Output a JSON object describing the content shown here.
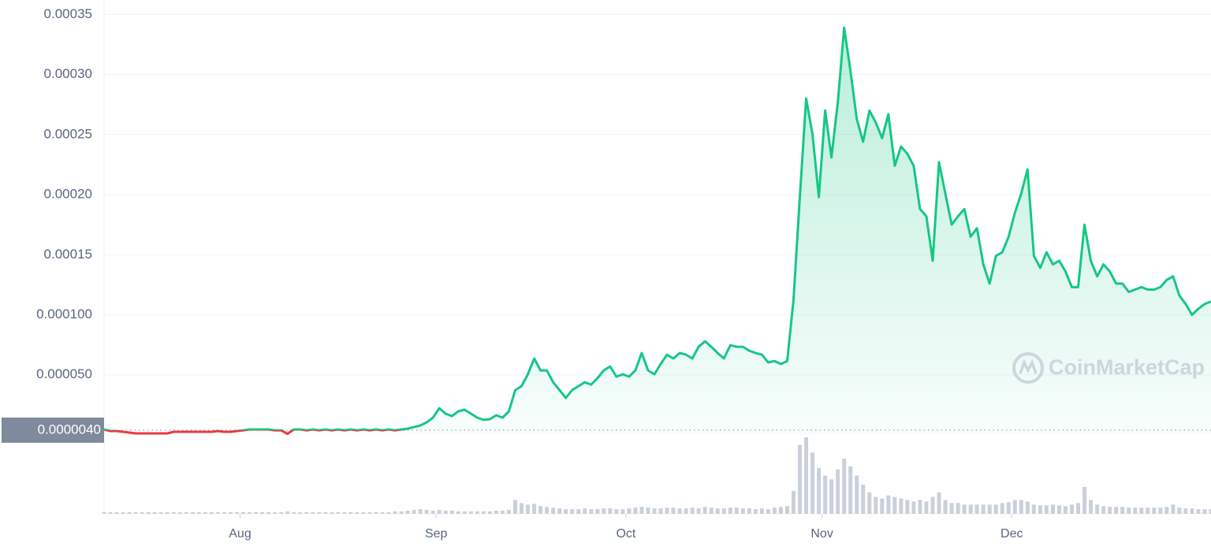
{
  "chart_data": {
    "type": "line",
    "x": [
      0,
      1,
      2,
      3,
      4,
      5,
      6,
      7,
      8,
      9,
      10,
      11,
      12,
      13,
      14,
      15,
      16,
      17,
      18,
      19,
      20,
      21,
      22,
      23,
      24,
      25,
      26,
      27,
      28,
      29,
      30,
      31,
      32,
      33,
      34,
      35,
      36,
      37,
      38,
      39,
      40,
      41,
      42,
      43,
      44,
      45,
      46,
      47,
      48,
      49,
      50,
      51,
      52,
      53,
      54,
      55,
      56,
      57,
      58,
      59,
      60,
      61,
      62,
      63,
      64,
      65,
      66,
      67,
      68,
      69,
      70,
      71,
      72,
      73,
      74,
      75,
      76,
      77,
      78,
      79,
      80,
      81,
      82,
      83,
      84,
      85,
      86,
      87,
      88,
      89,
      90,
      91,
      92,
      93,
      94,
      95,
      96,
      97,
      98,
      99,
      100,
      101,
      102,
      103,
      104,
      105,
      106,
      107,
      108,
      109,
      110,
      111,
      112,
      113,
      114,
      115,
      116,
      117,
      118,
      119,
      120,
      121,
      122,
      123,
      124,
      125,
      126,
      127,
      128,
      129,
      130,
      131,
      132,
      133,
      134,
      135,
      136,
      137,
      138,
      139,
      140,
      141,
      142,
      143,
      144,
      145,
      146,
      147,
      148,
      149,
      150,
      151,
      152,
      153,
      154,
      155,
      156,
      157,
      158,
      159,
      160,
      161,
      162,
      163,
      164,
      165,
      166,
      167,
      168,
      169,
      170,
      171,
      172,
      173,
      174,
      175
    ],
    "xlim": [
      0,
      175
    ],
    "xticks": [
      {
        "value": 21.5,
        "label": "Aug"
      },
      {
        "value": 52.5,
        "label": "Sep"
      },
      {
        "value": 82.5,
        "label": "Oct"
      },
      {
        "value": 113.5,
        "label": "Nov"
      },
      {
        "value": 143.5,
        "label": "Dec"
      }
    ],
    "ylim": [
      0,
      0.000362
    ],
    "yticks": [
      {
        "value": 5e-05,
        "label": "0.000050"
      },
      {
        "value": 0.0001,
        "label": "0.000100"
      },
      {
        "value": 0.00015,
        "label": "0.00015"
      },
      {
        "value": 0.0002,
        "label": "0.00020"
      },
      {
        "value": 0.00025,
        "label": "0.00025"
      },
      {
        "value": 0.0003,
        "label": "0.00030"
      },
      0.00035
    ],
    "grid": true,
    "series": [
      {
        "color": "#16c784",
        "values": [
          4.6e-06,
          3.3e-06,
          3.3e-06,
          2.6e-06,
          2e-06,
          1.3e-06,
          1.3e-06,
          1.3e-06,
          1.3e-06,
          1.3e-06,
          1.3e-06,
          2.6e-06,
          2.6e-06,
          2.6e-06,
          2.6e-06,
          2.6e-06,
          2.6e-06,
          2.6e-06,
          3.3e-06,
          2.6e-06,
          2.6e-06,
          3.3e-06,
          3.9e-06,
          4.6e-06,
          4.6e-06,
          4.6e-06,
          4.6e-06,
          3.9e-06,
          3.9e-06,
          1e-06,
          4.6e-06,
          4.6e-06,
          3.9e-06,
          4.6e-06,
          3.9e-06,
          4.6e-06,
          3.9e-06,
          4.6e-06,
          3.9e-06,
          4.6e-06,
          3.9e-06,
          4.6e-06,
          3.9e-06,
          4.6e-06,
          3.9e-06,
          4.6e-06,
          3.9e-06,
          4.6e-06,
          5.2e-06,
          6.6e-06,
          7.9e-06,
          1.05e-05,
          1.44e-05,
          2.23e-05,
          1.77e-05,
          1.57e-05,
          1.97e-05,
          2.1e-05,
          1.77e-05,
          1.44e-05,
          1.25e-05,
          1.31e-05,
          1.64e-05,
          1.44e-05,
          1.97e-05,
          3.74e-05,
          4.06e-05,
          5.05e-05,
          6.36e-05,
          5.37e-05,
          5.37e-05,
          4.39e-05,
          3.74e-05,
          3.08e-05,
          3.74e-05,
          4.06e-05,
          4.39e-05,
          4.19e-05,
          4.72e-05,
          5.37e-05,
          5.7e-05,
          4.85e-05,
          5.05e-05,
          4.85e-05,
          5.37e-05,
          6.82e-05,
          5.37e-05,
          5.05e-05,
          5.9e-05,
          6.68e-05,
          6.36e-05,
          6.82e-05,
          6.68e-05,
          6.36e-05,
          7.34e-05,
          7.8e-05,
          7.34e-05,
          6.82e-05,
          6.36e-05,
          7.47e-05,
          7.34e-05,
          7.34e-05,
          7.01e-05,
          6.82e-05,
          6.68e-05,
          6.03e-05,
          6.16e-05,
          5.9e-05,
          6.16e-05,
          0.0001127,
          0.000198,
          0.00028,
          0.00025,
          0.000198,
          0.00027,
          0.000231,
          0.000277,
          0.000339,
          0.000303,
          0.000263,
          0.000244,
          0.00027,
          0.00026,
          0.000247,
          0.000267,
          0.000224,
          0.00024,
          0.000234,
          0.000224,
          0.000188,
          0.000182,
          0.000145,
          0.000227,
          0.000201,
          0.000175,
          0.000182,
          0.000188,
          0.000165,
          0.000172,
          0.000142,
          0.000126,
          0.000149,
          0.000152,
          0.000165,
          0.000185,
          0.000201,
          0.000221,
          0.000149,
          0.000139,
          0.000152,
          0.000142,
          0.000145,
          0.000136,
          0.000123,
          0.000123,
          0.000175,
          0.000145,
          0.000132,
          0.000142,
          0.000136,
          0.000126,
          0.000126,
          0.000119,
          0.000121,
          0.000123,
          0.000121,
          0.000121,
          0.000123,
          0.000129,
          0.000132,
          0.000116,
          0.000109,
          0.0001,
          0.000105,
          0.000109,
          0.000111
        ]
      }
    ],
    "reference": {
      "value": 4e-06,
      "label": "0.0000040",
      "color_below": "#ea3943"
    },
    "volume": {
      "color": "#a6b0c3",
      "ylim": [
        0,
        100
      ],
      "values": [
        2,
        2,
        2,
        2,
        2,
        2,
        2,
        2,
        2,
        2,
        2,
        2,
        2,
        2,
        2,
        2,
        2,
        2,
        2,
        2,
        2,
        2,
        2,
        2,
        2,
        2,
        2,
        2,
        2,
        3,
        2,
        2,
        2,
        2,
        2,
        2,
        2,
        2,
        2,
        2,
        2,
        2,
        2,
        2,
        2,
        2,
        3,
        3,
        4,
        5,
        6,
        5,
        4,
        5,
        4,
        4,
        3,
        3,
        3,
        3,
        3,
        3,
        4,
        4,
        5,
        18,
        14,
        12,
        13,
        10,
        9,
        8,
        7,
        6,
        6,
        6,
        7,
        6,
        6,
        7,
        7,
        6,
        6,
        7,
        8,
        9,
        8,
        7,
        7,
        8,
        8,
        7,
        7,
        8,
        7,
        9,
        8,
        7,
        7,
        8,
        8,
        7,
        7,
        6,
        7,
        6,
        8,
        9,
        10,
        30,
        90,
        100,
        80,
        60,
        50,
        45,
        58,
        72,
        62,
        50,
        38,
        28,
        22,
        20,
        24,
        22,
        20,
        18,
        16,
        18,
        16,
        22,
        28,
        18,
        14,
        14,
        12,
        12,
        12,
        12,
        12,
        12,
        14,
        15,
        18,
        18,
        16,
        12,
        11,
        11,
        12,
        11,
        10,
        12,
        14,
        35,
        18,
        12,
        10,
        9,
        9,
        9,
        8,
        8,
        8,
        8,
        8,
        8,
        9,
        12,
        8,
        7,
        7,
        6,
        6,
        6
      ]
    },
    "watermark": "CoinMarketCap"
  }
}
